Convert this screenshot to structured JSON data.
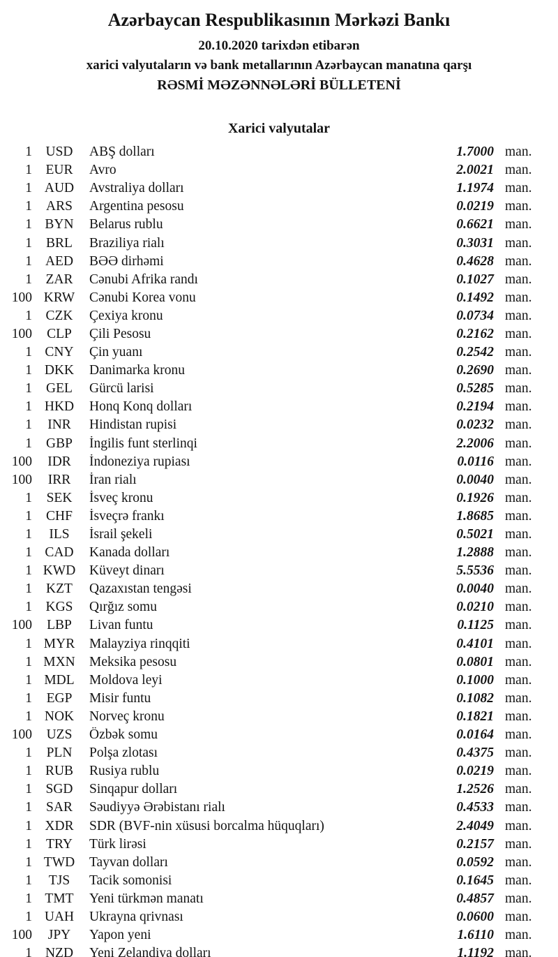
{
  "header": {
    "bank_name": "Azərbaycan Respublikasının Mərkəzi Bankı",
    "date_line": "20.10.2020 tarixdən etibarən",
    "subtitle": "xarici valyutaların və bank metallarının Azərbaycan manatına qarşı",
    "bulletin_title": "RƏSMİ MƏZƏNNƏLƏRİ BÜLLETENİ"
  },
  "section": {
    "title": "Xarici valyutalar"
  },
  "unit_suffix": "man.",
  "rates": [
    {
      "qty": "1",
      "code": "USD",
      "name": "ABŞ dolları",
      "rate": "1.7000"
    },
    {
      "qty": "1",
      "code": "EUR",
      "name": "Avro",
      "rate": "2.0021"
    },
    {
      "qty": "1",
      "code": "AUD",
      "name": "Avstraliya dolları",
      "rate": "1.1974"
    },
    {
      "qty": "1",
      "code": "ARS",
      "name": "Argentina pesosu",
      "rate": "0.0219"
    },
    {
      "qty": "1",
      "code": "BYN",
      "name": "Belarus rublu",
      "rate": "0.6621"
    },
    {
      "qty": "1",
      "code": "BRL",
      "name": "Braziliya rialı",
      "rate": "0.3031"
    },
    {
      "qty": "1",
      "code": "AED",
      "name": "BƏƏ dirhəmi",
      "rate": "0.4628"
    },
    {
      "qty": "1",
      "code": "ZAR",
      "name": "Cənubi Afrika randı",
      "rate": "0.1027"
    },
    {
      "qty": "100",
      "code": "KRW",
      "name": "Cənubi Korea vonu",
      "rate": "0.1492"
    },
    {
      "qty": "1",
      "code": "CZK",
      "name": "Çexiya kronu",
      "rate": "0.0734"
    },
    {
      "qty": "100",
      "code": "CLP",
      "name": "Çili Pesosu",
      "rate": "0.2162"
    },
    {
      "qty": "1",
      "code": "CNY",
      "name": "Çin yuanı",
      "rate": "0.2542"
    },
    {
      "qty": "1",
      "code": "DKK",
      "name": "Danimarka kronu",
      "rate": "0.2690"
    },
    {
      "qty": "1",
      "code": "GEL",
      "name": "Gürcü larisi",
      "rate": "0.5285"
    },
    {
      "qty": "1",
      "code": "HKD",
      "name": "Honq Konq dolları",
      "rate": "0.2194"
    },
    {
      "qty": "1",
      "code": "INR",
      "name": "Hindistan rupisi",
      "rate": "0.0232"
    },
    {
      "qty": "1",
      "code": "GBP",
      "name": "İngilis funt sterlinqi",
      "rate": "2.2006"
    },
    {
      "qty": "100",
      "code": "IDR",
      "name": "İndoneziya rupiası",
      "rate": "0.0116"
    },
    {
      "qty": "100",
      "code": "IRR",
      "name": "İran rialı",
      "rate": "0.0040"
    },
    {
      "qty": "1",
      "code": "SEK",
      "name": "İsveç kronu",
      "rate": "0.1926"
    },
    {
      "qty": "1",
      "code": "CHF",
      "name": "İsveçrə frankı",
      "rate": "1.8685"
    },
    {
      "qty": "1",
      "code": "ILS",
      "name": "İsrail şekeli",
      "rate": "0.5021"
    },
    {
      "qty": "1",
      "code": "CAD",
      "name": "Kanada dolları",
      "rate": "1.2888"
    },
    {
      "qty": "1",
      "code": "KWD",
      "name": "Küveyt dinarı",
      "rate": "5.5536"
    },
    {
      "qty": "1",
      "code": "KZT",
      "name": "Qazaxıstan tengəsi",
      "rate": "0.0040"
    },
    {
      "qty": "1",
      "code": "KGS",
      "name": "Qırğız somu",
      "rate": "0.0210"
    },
    {
      "qty": "100",
      "code": "LBP",
      "name": "Livan funtu",
      "rate": "0.1125"
    },
    {
      "qty": "1",
      "code": "MYR",
      "name": "Malayziya rinqqiti",
      "rate": "0.4101"
    },
    {
      "qty": "1",
      "code": "MXN",
      "name": "Meksika pesosu",
      "rate": "0.0801"
    },
    {
      "qty": "1",
      "code": "MDL",
      "name": "Moldova leyi",
      "rate": "0.1000"
    },
    {
      "qty": "1",
      "code": "EGP",
      "name": "Misir funtu",
      "rate": "0.1082"
    },
    {
      "qty": "1",
      "code": "NOK",
      "name": "Norveç kronu",
      "rate": "0.1821"
    },
    {
      "qty": "100",
      "code": "UZS",
      "name": "Özbək somu",
      "rate": "0.0164"
    },
    {
      "qty": "1",
      "code": "PLN",
      "name": "Polşa zlotası",
      "rate": "0.4375"
    },
    {
      "qty": "1",
      "code": "RUB",
      "name": "Rusiya rublu",
      "rate": "0.0219"
    },
    {
      "qty": "1",
      "code": "SGD",
      "name": "Sinqapur dolları",
      "rate": "1.2526"
    },
    {
      "qty": "1",
      "code": "SAR",
      "name": "Səudiyyə Ərəbistanı rialı",
      "rate": "0.4533"
    },
    {
      "qty": "1",
      "code": "XDR",
      "name": "SDR (BVF-nin xüsusi borcalma hüquqları)",
      "rate": "2.4049"
    },
    {
      "qty": "1",
      "code": "TRY",
      "name": "Türk lirəsi",
      "rate": "0.2157"
    },
    {
      "qty": "1",
      "code": "TWD",
      "name": "Tayvan dolları",
      "rate": "0.0592"
    },
    {
      "qty": "1",
      "code": "TJS",
      "name": "Tacik somonisi",
      "rate": "0.1645"
    },
    {
      "qty": "1",
      "code": "TMT",
      "name": "Yeni türkmən manatı",
      "rate": "0.4857"
    },
    {
      "qty": "1",
      "code": "UAH",
      "name": "Ukrayna qrivnası",
      "rate": "0.0600"
    },
    {
      "qty": "100",
      "code": "JPY",
      "name": "Yapon yeni",
      "rate": "1.6110"
    },
    {
      "qty": "1",
      "code": "NZD",
      "name": "Yeni Zelandiya dolları",
      "rate": "1.1192"
    }
  ]
}
